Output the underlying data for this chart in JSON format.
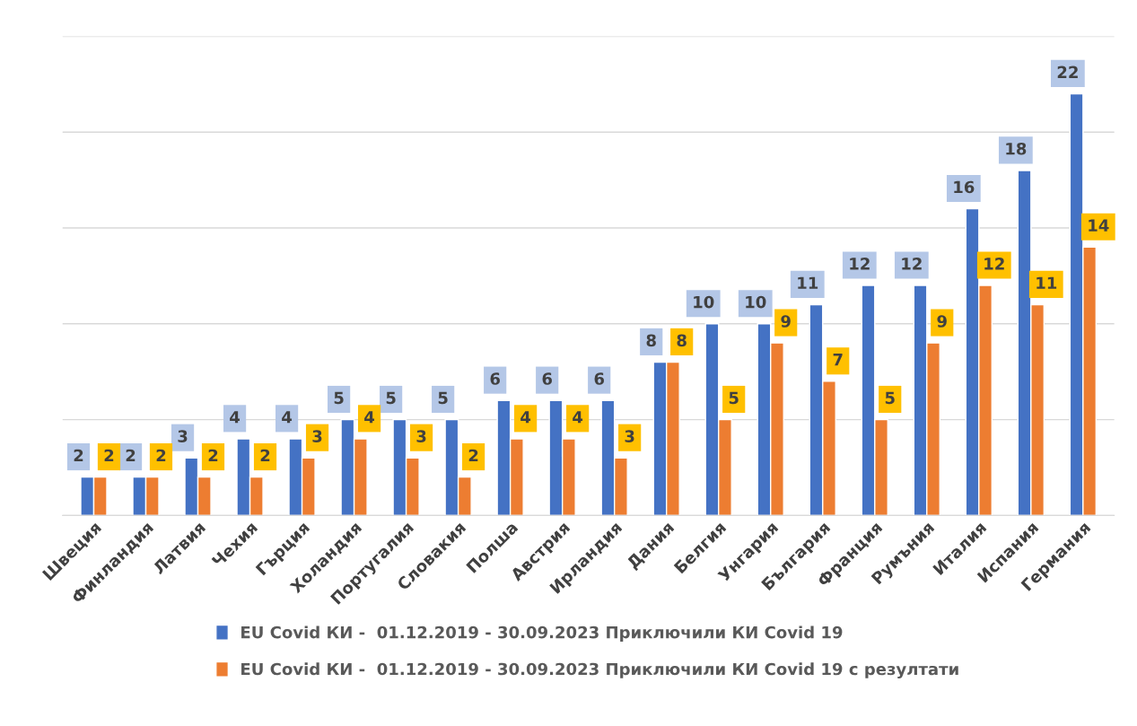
{
  "chart_data": {
    "type": "bar",
    "categories": [
      "Швеция",
      "Финландия",
      "Латвия",
      "Чехия",
      "Гърция",
      "Холандия",
      "Португалия",
      "Словакия",
      "Полша",
      "Австрия",
      "Ирландия",
      "Дания",
      "Белгия",
      "Унгария",
      "България",
      "Франция",
      "Румъния",
      "Италия",
      "Испания",
      "Германия"
    ],
    "series": [
      {
        "name": "EU Covid КИ -  01.12.2019 - 30.09.2023 Приключили КИ Covid 19",
        "color": "#4472c4",
        "values": [
          2,
          2,
          3,
          4,
          4,
          5,
          5,
          5,
          6,
          6,
          6,
          8,
          10,
          10,
          11,
          12,
          12,
          16,
          18,
          22
        ]
      },
      {
        "name": "EU Covid КИ -  01.12.2019 - 30.09.2023 Приключили КИ Covid 19 с резултати",
        "color": "#ed7d31",
        "values": [
          2,
          2,
          2,
          2,
          3,
          4,
          3,
          2,
          4,
          4,
          3,
          8,
          5,
          9,
          7,
          5,
          9,
          12,
          11,
          14
        ]
      }
    ],
    "ylim": [
      0,
      25
    ],
    "yticks": [
      {
        "value": 0,
        "label": null
      },
      {
        "value": 5,
        "label": null
      },
      {
        "value": 10,
        "label": null
      },
      {
        "value": 15,
        "label": null
      },
      {
        "value": 20,
        "label": null
      },
      {
        "value": 25,
        "label": null
      }
    ],
    "tick_labels": "x",
    "grid": "y",
    "legend": "bottom",
    "data_labels": true
  }
}
